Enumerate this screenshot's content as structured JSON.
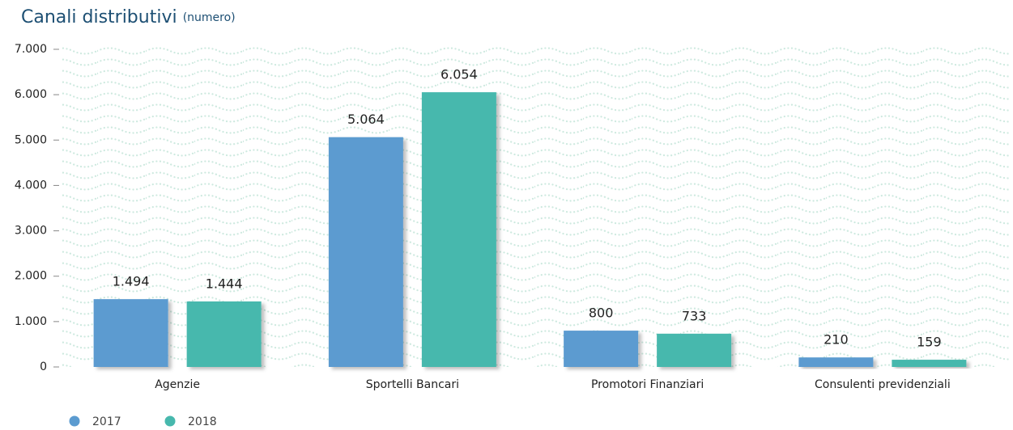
{
  "chart_data": {
    "type": "bar",
    "title": "Canali distributivi",
    "subtitle": "(numero)",
    "categories": [
      "Agenzie",
      "Sportelli Bancari",
      "Promotori Finanziari",
      "Consulenti previdenziali"
    ],
    "series": [
      {
        "name": "2017",
        "color": "#5b9bd0",
        "values": [
          1494,
          5064,
          800,
          210
        ],
        "value_labels": [
          "1.494",
          "5.064",
          "800",
          "210"
        ]
      },
      {
        "name": "2018",
        "color": "#47b8ad",
        "values": [
          1444,
          6054,
          733,
          159
        ],
        "value_labels": [
          "1.444",
          "6.054",
          "733",
          "159"
        ]
      }
    ],
    "ylim": [
      0,
      7000
    ],
    "yticks": [
      0,
      {
        "value": 1000,
        "label": "1.000"
      },
      {
        "value": 2000,
        "label": "2.000"
      },
      {
        "value": 3000,
        "label": "3.000"
      },
      {
        "value": 4000,
        "label": "4.000"
      },
      {
        "value": 5000,
        "label": "5.000"
      },
      {
        "value": 6000,
        "label": "6.000"
      },
      {
        "value": 7000,
        "label": "7.000"
      }
    ],
    "grid": false,
    "legend": "bottom-left"
  }
}
